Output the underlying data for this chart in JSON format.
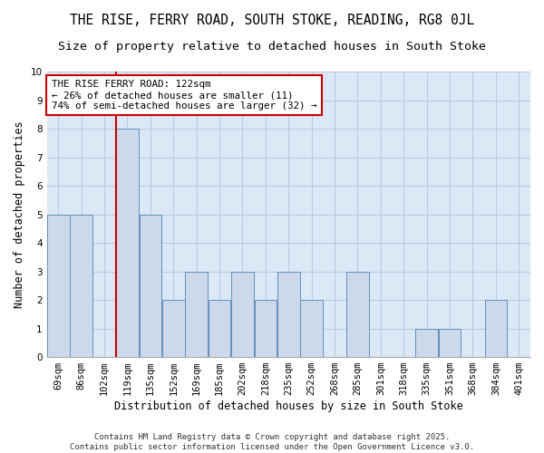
{
  "title": "THE RISE, FERRY ROAD, SOUTH STOKE, READING, RG8 0JL",
  "subtitle": "Size of property relative to detached houses in South Stoke",
  "xlabel": "Distribution of detached houses by size in South Stoke",
  "ylabel": "Number of detached properties",
  "categories": [
    "69sqm",
    "86sqm",
    "102sqm",
    "119sqm",
    "135sqm",
    "152sqm",
    "169sqm",
    "185sqm",
    "202sqm",
    "218sqm",
    "235sqm",
    "252sqm",
    "268sqm",
    "285sqm",
    "301sqm",
    "318sqm",
    "335sqm",
    "351sqm",
    "368sqm",
    "384sqm",
    "401sqm"
  ],
  "bar_heights": [
    5,
    5,
    0,
    8,
    5,
    2,
    3,
    2,
    3,
    2,
    3,
    2,
    0,
    3,
    0,
    0,
    1,
    1,
    0,
    2,
    0
  ],
  "bar_color": "#cdd9ea",
  "bar_edge_color": "#6090c0",
  "red_line_index": 3,
  "annotation_line1": "THE RISE FERRY ROAD: 122sqm",
  "annotation_line2": "← 26% of detached houses are smaller (11)",
  "annotation_line3": "74% of semi-detached houses are larger (32) →",
  "annotation_box_color": "white",
  "annotation_box_edge_color": "#cc0000",
  "ylim": [
    0,
    10
  ],
  "yticks": [
    0,
    1,
    2,
    3,
    4,
    5,
    6,
    7,
    8,
    9,
    10
  ],
  "grid_color": "#b8cde0",
  "plot_bg_color": "#dce8f5",
  "fig_bg_color": "#ffffff",
  "footer": "Contains HM Land Registry data © Crown copyright and database right 2025.\nContains public sector information licensed under the Open Government Licence v3.0.",
  "title_fontsize": 10.5,
  "subtitle_fontsize": 9.5,
  "xlabel_fontsize": 8.5,
  "ylabel_fontsize": 8.5,
  "tick_fontsize": 7.5,
  "footer_fontsize": 6.5,
  "annotation_fontsize": 7.8
}
